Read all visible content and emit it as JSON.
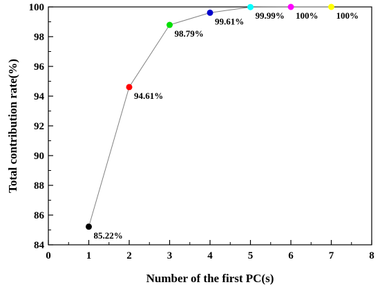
{
  "chart_data": {
    "type": "line",
    "title": "",
    "xlabel": "Number of the first PC(s)",
    "ylabel": "Total contribution rate(%)",
    "xlim": [
      0,
      8
    ],
    "ylim": [
      84,
      100
    ],
    "xticks": [
      "0",
      "1",
      "2",
      "3",
      "4",
      "5",
      "6",
      "7",
      "8"
    ],
    "yticks": [
      "84",
      "86",
      "88",
      "90",
      "92",
      "94",
      "96",
      "98",
      "100"
    ],
    "grid": false,
    "legend": "none",
    "line_color": "#808080",
    "points": [
      {
        "x": 1,
        "y": 85.22,
        "label": "85.22%",
        "color": "#000000"
      },
      {
        "x": 2,
        "y": 94.61,
        "label": "94.61%",
        "color": "#ff0000"
      },
      {
        "x": 3,
        "y": 98.79,
        "label": "98.79%",
        "color": "#00e000"
      },
      {
        "x": 4,
        "y": 99.61,
        "label": "99.61%",
        "color": "#0000cc"
      },
      {
        "x": 5,
        "y": 99.99,
        "label": "99.99%",
        "color": "#00ffff"
      },
      {
        "x": 6,
        "y": 100,
        "label": "100%",
        "color": "#ff00ff"
      },
      {
        "x": 7,
        "y": 100,
        "label": "100%",
        "color": "#ffff00"
      }
    ]
  }
}
